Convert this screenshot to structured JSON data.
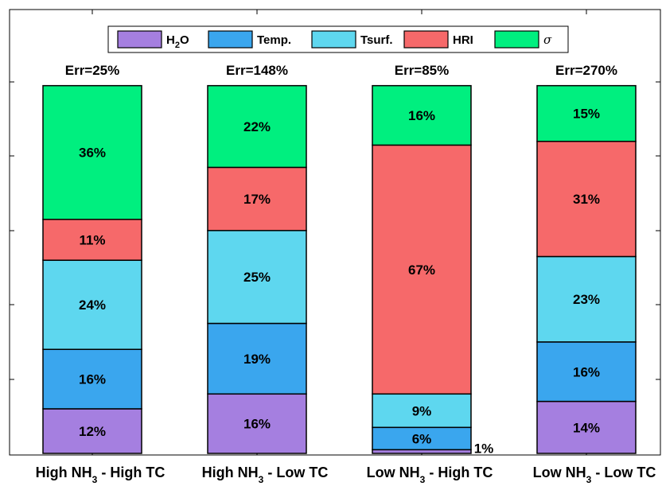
{
  "chart_data": {
    "type": "bar",
    "stacked": true,
    "categories": [
      {
        "main": "High NH",
        "sub": "3",
        "rest": " - High TC"
      },
      {
        "main": "High NH",
        "sub": "3",
        "rest": " - Low TC"
      },
      {
        "main": "Low NH",
        "sub": "3",
        "rest": " - High TC"
      },
      {
        "main": "Low NH",
        "sub": "3",
        "rest": " - Low TC"
      }
    ],
    "errors": [
      "Err=25%",
      "Err=148%",
      "Err=85%",
      "Err=270%"
    ],
    "legend": [
      {
        "label": "H",
        "sub": "2",
        "suffix": "O",
        "color": "#a57fe0"
      },
      {
        "label": "Temp.",
        "color": "#3aa6ee"
      },
      {
        "label": "Tsurf.",
        "color": "#5ed7ef"
      },
      {
        "label": "HRI",
        "color": "#f6696a"
      },
      {
        "label": "σ",
        "color": "#00ef7f",
        "italic": true
      }
    ],
    "legend_position": "top-center",
    "series": [
      {
        "values": [
          12,
          16,
          1,
          14
        ]
      },
      {
        "values": [
          16,
          19,
          6,
          16
        ]
      },
      {
        "values": [
          24,
          25,
          9,
          23
        ]
      },
      {
        "values": [
          11,
          17,
          67,
          31
        ]
      },
      {
        "values": [
          36,
          22,
          16,
          15
        ]
      }
    ],
    "labels": [
      [
        "12%",
        "16%",
        "24%",
        "11%",
        "36%"
      ],
      [
        "16%",
        "19%",
        "25%",
        "17%",
        "22%"
      ],
      [
        "1%",
        "6%",
        "9%",
        "67%",
        "16%"
      ],
      [
        "14%",
        "16%",
        "23%",
        "31%",
        "15%"
      ]
    ],
    "ylim": [
      0,
      100
    ],
    "grid": false
  }
}
